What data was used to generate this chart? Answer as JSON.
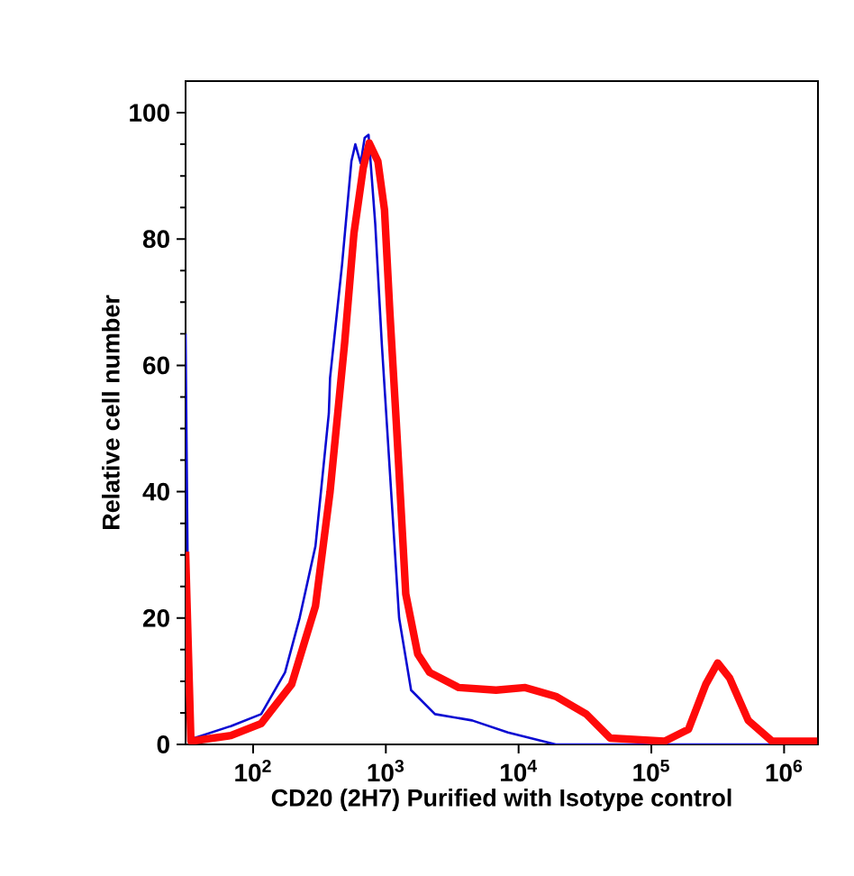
{
  "chart_data": {
    "type": "line",
    "xlabel": "CD20 (2H7) Purified with Isotype control",
    "ylabel": "Relative cell number",
    "log": "x",
    "xlim": [
      31,
      1800000
    ],
    "ylim": [
      0,
      105
    ],
    "xticks": [
      {
        "value": 100,
        "label": "10$^{2}$"
      },
      {
        "value": 1000,
        "label": "10$^{3}$"
      },
      {
        "value": 10000,
        "label": "10$^{4}$"
      },
      {
        "value": 100000,
        "label": "10$^{5}$"
      },
      {
        "value": 1000000,
        "label": "10$^{6}$"
      }
    ],
    "yticks": [
      0,
      20,
      40,
      60,
      80,
      100
    ],
    "grid": false,
    "marker": "none",
    "line_style": "solid",
    "series": [
      {
        "color": "#0a0ad2",
        "x": [
          31,
          33,
          36,
          68,
          115,
          174,
          224,
          295,
          372,
          380,
          468,
          550,
          589,
          646,
          692,
          741,
          832,
          933,
          1023,
          1259,
          1549,
          2344,
          4467,
          8318,
          19050,
          1778000
        ],
        "values": [
          65,
          1,
          1,
          2.9,
          4.8,
          11.4,
          20,
          31.4,
          52.4,
          58,
          76,
          92.3,
          95,
          92,
          96,
          96.5,
          82.4,
          63.3,
          50,
          20,
          8.6,
          4.8,
          3.8,
          1.9,
          0,
          0
        ]
      },
      {
        "color": "#ff0a0a",
        "x": [
          31,
          34,
          68,
          115,
          195,
          295,
          380,
          490,
          575,
          676,
          750,
          871,
          977,
          1072,
          1202,
          1413,
          1738,
          2138,
          3548,
          6761,
          11220,
          19050,
          32360,
          48980,
          125900,
          190500,
          257000,
          316200,
          389000,
          537000,
          812800,
          1778000
        ],
        "values": [
          30.5,
          0.5,
          1.4,
          3.3,
          9.5,
          21.9,
          40,
          63.7,
          80.9,
          91.3,
          95.2,
          92.3,
          84.6,
          68.4,
          50.5,
          23.8,
          14.3,
          11.4,
          9,
          8.6,
          9,
          7.6,
          4.8,
          1,
          0.5,
          2.4,
          9.5,
          12.9,
          10.5,
          3.8,
          0.5,
          0.5
        ]
      }
    ]
  }
}
